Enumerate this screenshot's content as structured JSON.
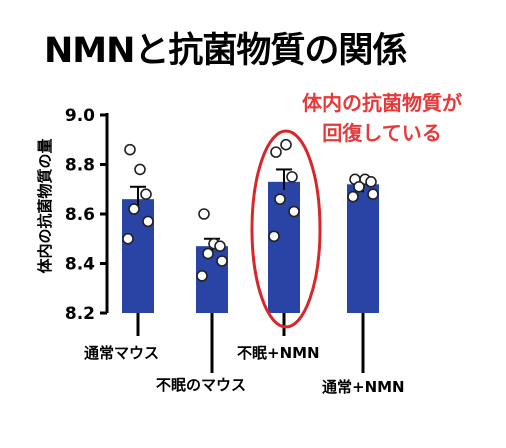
{
  "title": "NMNと抗菌物質の関係",
  "annotation": {
    "line1": "体内の抗菌物質が",
    "line2": "回復している"
  },
  "colors": {
    "bar": "#2a44a6",
    "annotation": "#e8393a",
    "ellipse": "#d9262b"
  },
  "chart_data": {
    "type": "bar",
    "ylabel": "体内の抗菌物質の量",
    "ylim": [
      8.2,
      9.0
    ],
    "yticks": [
      "8.2",
      "8.4",
      "8.6",
      "8.8",
      "9.0"
    ],
    "categories": [
      "通常マウス",
      "不眠のマウス",
      "不眠+NMN",
      "通常+NMN"
    ],
    "values": [
      8.66,
      8.47,
      8.73,
      8.72
    ],
    "errors": [
      0.05,
      0.03,
      0.05,
      0.02
    ],
    "points": [
      [
        8.86,
        8.78,
        8.68,
        8.62,
        8.57,
        8.5
      ],
      [
        8.6,
        8.48,
        8.47,
        8.44,
        8.41,
        8.35
      ],
      [
        8.85,
        8.88,
        8.75,
        8.66,
        8.61,
        8.51
      ],
      [
        8.74,
        8.74,
        8.73,
        8.71,
        8.68,
        8.67
      ]
    ],
    "highlight_index": 2
  }
}
